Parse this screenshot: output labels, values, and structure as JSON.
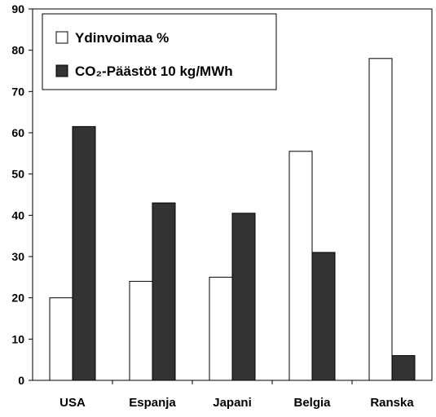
{
  "chart_data": {
    "type": "bar",
    "categories": [
      "USA",
      "Espanja",
      "Japani",
      "Belgia",
      "Ranska"
    ],
    "series": [
      {
        "name": "Ydinvoimaa %",
        "values": [
          20,
          24,
          25,
          55.5,
          78
        ],
        "color": "#ffffff"
      },
      {
        "name": "CO₂-Päästöt 10 kg/MWh",
        "values": [
          61.5,
          43,
          40.5,
          31,
          6
        ],
        "color": "#333333"
      }
    ],
    "ylim": [
      0,
      90
    ],
    "yticks": [
      0,
      10,
      20,
      30,
      40,
      50,
      60,
      70,
      80,
      90
    ],
    "grid": false,
    "legend_position": "top-left"
  }
}
